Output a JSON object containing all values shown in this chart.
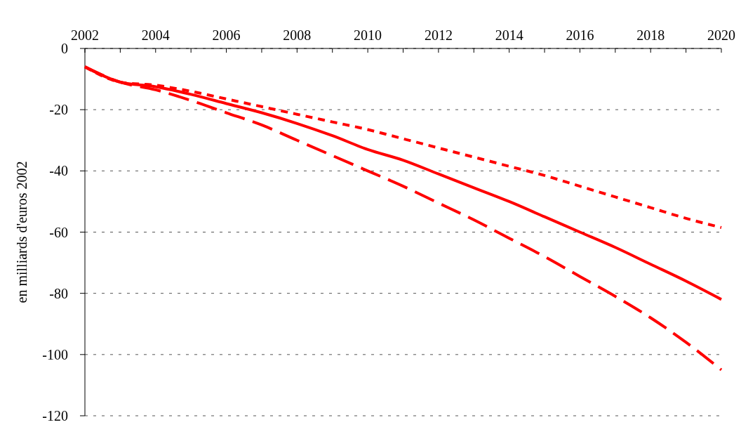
{
  "chart_data": {
    "type": "line",
    "ylabel": "en milliards d'euros 2002",
    "x": [
      2002,
      2003,
      2004,
      2005,
      2006,
      2007,
      2008,
      2009,
      2010,
      2011,
      2012,
      2013,
      2014,
      2015,
      2016,
      2017,
      2018,
      2019,
      2020
    ],
    "xlim": [
      2002,
      2020
    ],
    "xticks": [
      2002,
      {
        "value": 2003,
        "label": null
      },
      2004,
      {
        "value": 2005,
        "label": null
      },
      2006,
      {
        "value": 2007,
        "label": null
      },
      2008,
      {
        "value": 2009,
        "label": null
      },
      2010,
      {
        "value": 2011,
        "label": null
      },
      2012,
      {
        "value": 2013,
        "label": null
      },
      2014,
      {
        "value": 2015,
        "label": null
      },
      2016,
      {
        "value": 2017,
        "label": null
      },
      2018,
      {
        "value": 2019,
        "label": null
      },
      2020
    ],
    "ylim": [
      -120,
      0
    ],
    "yticks": [
      -120,
      -100,
      -80,
      -60,
      -40,
      -20,
      0
    ],
    "grid": "y",
    "series": [
      {
        "color": "#ff0000",
        "line_style": "solid",
        "values": [
          -6,
          -11,
          -12.5,
          -15,
          -18,
          -21,
          -24.5,
          -28.5,
          -33,
          -36.5,
          -41,
          -45.5,
          -50,
          -55,
          -60,
          -65,
          -70.5,
          -76,
          -82
        ]
      },
      {
        "color": "#ff0000",
        "line_style": "dotted",
        "values": [
          -6,
          -11,
          -12,
          -14,
          -16.5,
          -19,
          -21.5,
          -24,
          -26.5,
          -29.5,
          -32.5,
          -35.5,
          -38.5,
          -41.5,
          -45,
          -48.5,
          -52,
          -55.5,
          -58.5
        ]
      },
      {
        "color": "#ff0000",
        "line_style": "dashed",
        "values": [
          -6,
          -11,
          -13.5,
          -17,
          -21,
          -25,
          -30,
          -35,
          -40,
          -45,
          -50.5,
          -56,
          -62,
          -68,
          -74.5,
          -81,
          -88,
          -96,
          -105
        ]
      }
    ]
  }
}
